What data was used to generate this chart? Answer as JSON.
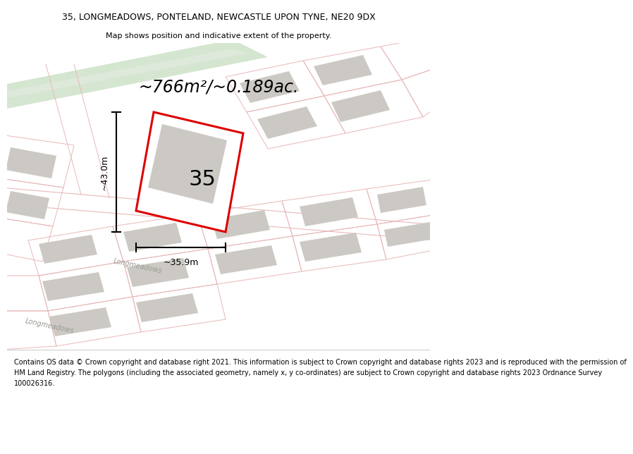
{
  "title": "35, LONGMEADOWS, PONTELAND, NEWCASTLE UPON TYNE, NE20 9DX",
  "subtitle": "Map shows position and indicative extent of the property.",
  "area_text": "~766m²/~0.189ac.",
  "dim_width": "~35.9m",
  "dim_height": "~43.0m",
  "house_number": "35",
  "footer_lines": [
    "Contains OS data © Crown copyright and database right 2021. This information is subject to Crown copyright and database rights 2023 and is reproduced with the permission of",
    "HM Land Registry. The polygons (including the associated geometry, namely x, y co-ordinates) are subject to Crown copyright and database rights 2023 Ordnance Survey",
    "100026316."
  ],
  "map_bg": "#f2f0ec",
  "road_strip_color": "#d4e6d0",
  "plot_color": "#dd0000",
  "building_color": "#ccc9c4",
  "road_outline_color": "#e8b8b8",
  "street_label": "Longmeadows",
  "title_fontsize": 9,
  "subtitle_fontsize": 8,
  "area_fontsize": 17,
  "dim_fontsize": 9,
  "number_fontsize": 22,
  "footer_fontsize": 7
}
